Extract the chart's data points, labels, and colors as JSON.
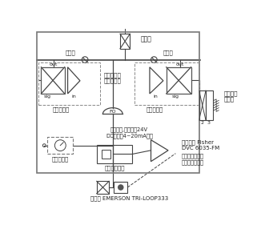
{
  "bg_color": "#ffffff",
  "lc": "#444444",
  "tc": "#222222",
  "labels": {
    "danxiangfa_left": "单向阀",
    "danxiangfa_right": "单向阀",
    "zuniqi": "阻尼器",
    "qidong_left": "气动放大器",
    "qidong_right": "气动放大器",
    "xingcheng": "行行程降噪\n偏心旋转阀",
    "liangjie_solenoid": "两位三通\n电磁阀",
    "lianxin_cable": "两芯电缆,同时提供24V\nDC供电和4~20mA信号",
    "guolv": "过滤减压阀",
    "fawei_feedback": "阀位反馈模块",
    "zhudingweiq": "主定位器 Fisher\nDVC 6035-FM",
    "fawei_signal": "阀位反馈信号去\n计机和间变送器",
    "biansong": "变送器 EMERSON TRI-LOOP333",
    "FO": "FO",
    "out": "out",
    "sig": "sig",
    "in_label": "in",
    "num2": "2",
    "num3": "3"
  }
}
